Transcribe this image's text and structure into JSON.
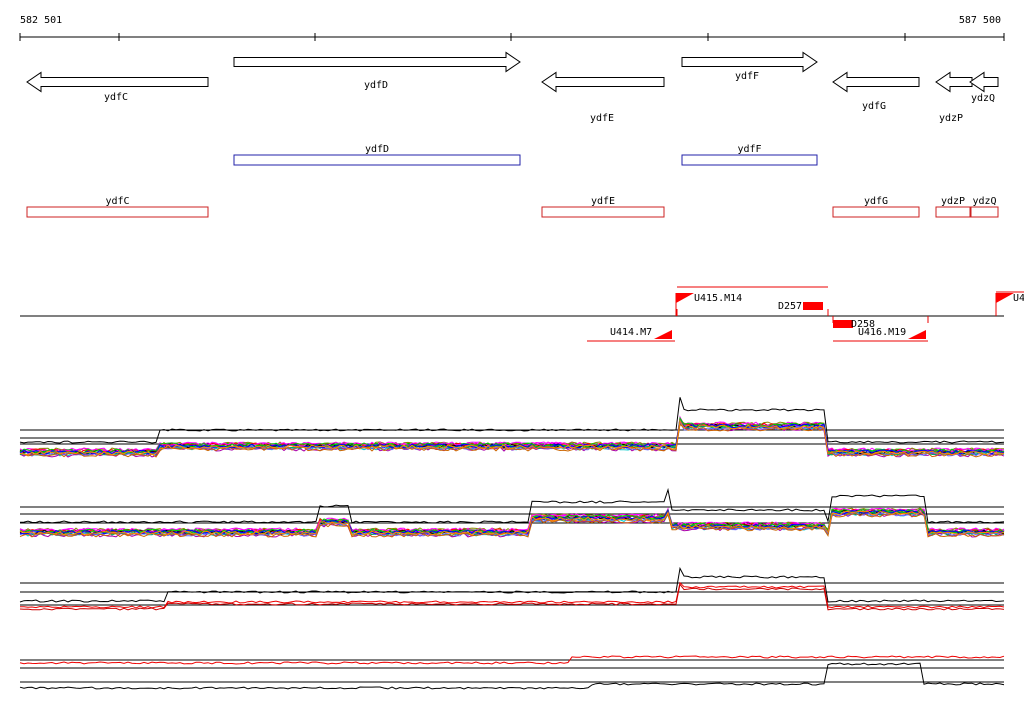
{
  "coord_start": "582 501",
  "coord_end": "587 500",
  "colors": {
    "gene_outline": "#000000",
    "forward_box": "#2222aa",
    "reverse_box": "#cc2222",
    "flag": "#ff0000",
    "bracket": "#ee0000",
    "axis": "#000000"
  },
  "genes": [
    {
      "name": "ydfC",
      "strand": "-"
    },
    {
      "name": "ydfD",
      "strand": "+"
    },
    {
      "name": "ydfE",
      "strand": "-"
    },
    {
      "name": "ydfF",
      "strand": "+"
    },
    {
      "name": "ydfG",
      "strand": "-"
    },
    {
      "name": "ydzP",
      "strand": "-"
    },
    {
      "name": "ydzQ",
      "strand": "-"
    }
  ],
  "forward_genes": [
    {
      "name": "ydfD"
    },
    {
      "name": "ydfF"
    }
  ],
  "reverse_genes": [
    {
      "name": "ydfC"
    },
    {
      "name": "ydfE"
    },
    {
      "name": "ydfG"
    },
    {
      "name": "ydzP"
    },
    {
      "name": "ydzQ"
    }
  ],
  "transcription_units": [
    {
      "label": "U414.M7",
      "strand": "-"
    },
    {
      "label": "U415.M14",
      "strand": "+"
    },
    {
      "label": "U416.M19",
      "strand": "-"
    },
    {
      "label": "U4",
      "strand": "+"
    }
  ],
  "terminators": [
    {
      "label": "D257"
    },
    {
      "label": "D258"
    }
  ],
  "expression_tracks": [
    {
      "name": "track-1",
      "kind": "multicolor"
    },
    {
      "name": "track-2",
      "kind": "multicolor"
    },
    {
      "name": "track-3",
      "kind": "red-black"
    },
    {
      "name": "track-4",
      "kind": "red-black-split"
    }
  ]
}
